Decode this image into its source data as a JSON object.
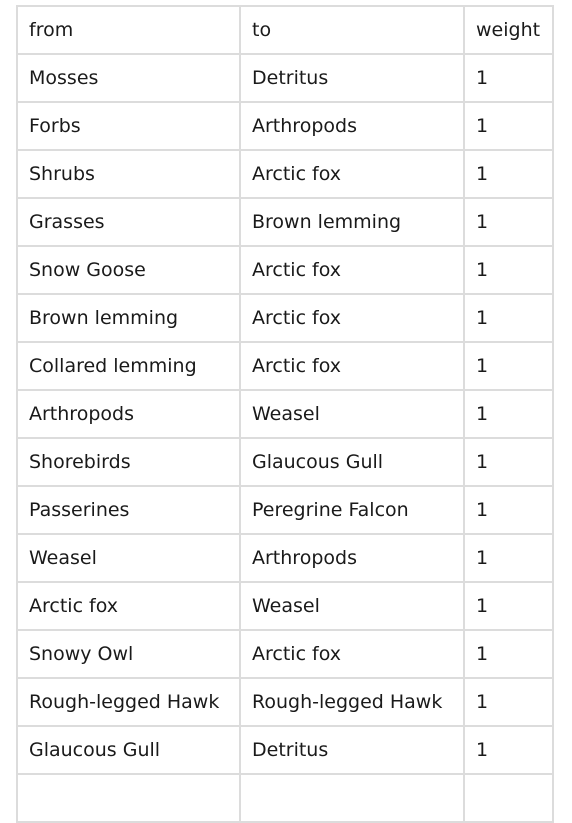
{
  "table": {
    "headers": [
      "from",
      "to",
      "weight"
    ],
    "rows": [
      [
        "Mosses",
        "Detritus",
        "1"
      ],
      [
        "Forbs",
        "Arthropods",
        "1"
      ],
      [
        "Shrubs",
        "Arctic fox",
        "1"
      ],
      [
        "Grasses",
        "Brown lemming",
        "1"
      ],
      [
        "Snow Goose",
        "Arctic fox",
        "1"
      ],
      [
        "Brown lemming",
        "Arctic fox",
        "1"
      ],
      [
        "Collared lemming",
        "Arctic fox",
        "1"
      ],
      [
        "Arthropods",
        "Weasel",
        "1"
      ],
      [
        "Shorebirds",
        "Glaucous Gull",
        "1"
      ],
      [
        "Passerines",
        "Peregrine Falcon",
        "1"
      ],
      [
        "Weasel",
        "Arthropods",
        "1"
      ],
      [
        "Arctic fox",
        "Weasel",
        "1"
      ],
      [
        "Snowy Owl",
        "Arctic fox",
        "1"
      ],
      [
        "Rough-legged Hawk",
        "Rough-legged Hawk",
        "1"
      ],
      [
        "Glaucous Gull",
        "Detritus",
        "1"
      ],
      [
        "",
        "",
        ""
      ]
    ]
  }
}
